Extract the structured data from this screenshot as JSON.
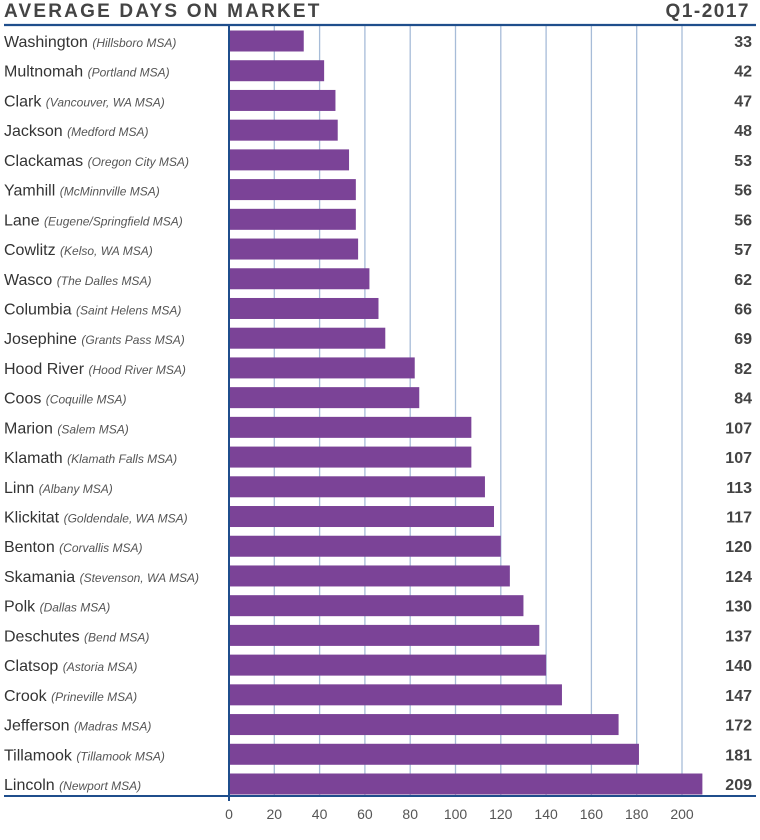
{
  "header": {
    "title": "AVERAGE DAYS ON MARKET",
    "period": "Q1-2017"
  },
  "colors": {
    "bar": "#7b4397",
    "axis": "#1f4e8c",
    "grid": "#a7bcd8",
    "text": "#444444"
  },
  "chart_data": {
    "type": "bar",
    "orientation": "horizontal",
    "title": "AVERAGE DAYS ON MARKET",
    "subtitle": "Q1-2017",
    "xlabel": "",
    "ylabel": "",
    "xlim": [
      0,
      220
    ],
    "xticks": [
      0,
      20,
      40,
      60,
      80,
      100,
      120,
      140,
      160,
      180,
      200
    ],
    "grid": true,
    "legend": "none",
    "categories": [
      {
        "name": "Washington",
        "sub": "(Hillsboro MSA)"
      },
      {
        "name": "Multnomah",
        "sub": "(Portland MSA)"
      },
      {
        "name": "Clark",
        "sub": "(Vancouver, WA MSA)"
      },
      {
        "name": "Jackson",
        "sub": "(Medford MSA)"
      },
      {
        "name": "Clackamas",
        "sub": "(Oregon City MSA)"
      },
      {
        "name": "Yamhill",
        "sub": "(McMinnville MSA)"
      },
      {
        "name": "Lane",
        "sub": "(Eugene/Springfield MSA)"
      },
      {
        "name": "Cowlitz",
        "sub": "(Kelso, WA MSA)"
      },
      {
        "name": "Wasco",
        "sub": "(The Dalles MSA)"
      },
      {
        "name": "Columbia",
        "sub": "(Saint Helens MSA)"
      },
      {
        "name": "Josephine",
        "sub": "(Grants Pass MSA)"
      },
      {
        "name": "Hood River",
        "sub": "(Hood River MSA)"
      },
      {
        "name": "Coos",
        "sub": "(Coquille MSA)"
      },
      {
        "name": "Marion",
        "sub": "(Salem MSA)"
      },
      {
        "name": "Klamath",
        "sub": "(Klamath Falls MSA)"
      },
      {
        "name": "Linn",
        "sub": "(Albany MSA)"
      },
      {
        "name": "Klickitat",
        "sub": "(Goldendale, WA MSA)"
      },
      {
        "name": "Benton",
        "sub": "(Corvallis MSA)"
      },
      {
        "name": "Skamania",
        "sub": "(Stevenson, WA MSA)"
      },
      {
        "name": "Polk",
        "sub": "(Dallas MSA)"
      },
      {
        "name": "Deschutes",
        "sub": "(Bend MSA)"
      },
      {
        "name": "Clatsop",
        "sub": "(Astoria MSA)"
      },
      {
        "name": "Crook",
        "sub": "(Prineville MSA)"
      },
      {
        "name": "Jefferson",
        "sub": "(Madras MSA)"
      },
      {
        "name": "Tillamook",
        "sub": "(Tillamook MSA)"
      },
      {
        "name": "Lincoln",
        "sub": "(Newport MSA)"
      }
    ],
    "values": [
      33,
      42,
      47,
      48,
      53,
      56,
      56,
      57,
      62,
      66,
      69,
      82,
      84,
      107,
      107,
      113,
      117,
      120,
      124,
      130,
      137,
      140,
      147,
      172,
      181,
      209
    ]
  }
}
